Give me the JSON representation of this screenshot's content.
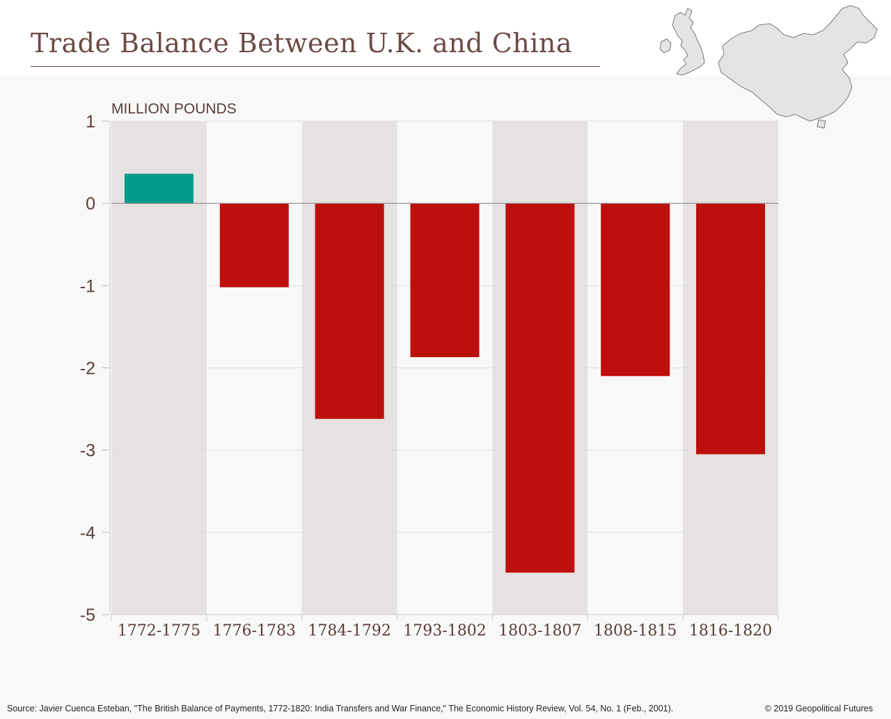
{
  "header": {
    "title": "Trade Balance Between U.K. and China"
  },
  "maps": {
    "uk_icon": "uk-map-icon",
    "china_icon": "china-map-icon",
    "fill_color": "#e6e3e3",
    "stroke_color": "#777777"
  },
  "chart_data": {
    "type": "bar",
    "title": "Trade Balance Between U.K. and China",
    "ylabel": "MILLION POUNDS",
    "xlabel": "",
    "categories": [
      "1772-1775",
      "1776-1783",
      "1784-1792",
      "1793-1802",
      "1803-1807",
      "1808-1815",
      "1816-1820"
    ],
    "values": [
      0.36,
      -1.02,
      -2.62,
      -1.87,
      -4.49,
      -2.1,
      -3.05
    ],
    "ylim": [
      -5,
      1
    ],
    "yticks": [
      "1",
      "0",
      "-1",
      "-2",
      "-3",
      "-4",
      "-5"
    ],
    "grid": true,
    "legend": "none",
    "colors": {
      "positive": "#009b8a",
      "negative": "#bd0f0b",
      "band": "#e5e2e1",
      "grid": "#dddddd",
      "zero_line": "#888888",
      "text": "#5a3d37"
    }
  },
  "footer": {
    "source": "Source: Javier Cuenca Esteban, \"The British Balance of Payments, 1772-1820: India Transfers and War Finance,\" The Economic History Review, Vol. 54, No. 1 (Feb., 2001).",
    "copyright": "© 2019 Geopolitical Futures"
  }
}
